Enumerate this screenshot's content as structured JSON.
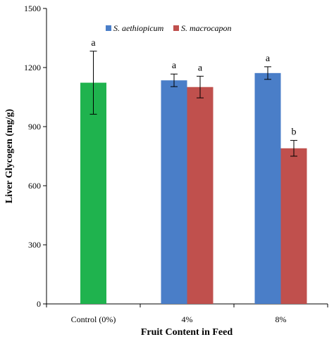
{
  "chart_data": {
    "type": "bar",
    "title": "",
    "xlabel": "Fruit Content in Feed",
    "ylabel": "Liver Glycogen (mg/g)",
    "ylim": [
      0,
      1500
    ],
    "yticks": [
      "0",
      "300",
      "600",
      "900",
      "1200",
      "1500"
    ],
    "categories": [
      "Control (0%)",
      "4%",
      "8%"
    ],
    "legend_position": "top-right",
    "grid": false,
    "bars": [
      {
        "category": "Control (0%)",
        "series": "Control",
        "value": 1123,
        "error": 160,
        "color": "#1fb34e",
        "label": "a"
      },
      {
        "category": "4%",
        "series": "S. aethiopicum",
        "value": 1135,
        "error": 32,
        "color": "#4a7ec8",
        "label": "a"
      },
      {
        "category": "4%",
        "series": "S. macrocapon",
        "value": 1101,
        "error": 55,
        "color": "#c0504d",
        "label": "a"
      },
      {
        "category": "8%",
        "series": "S. aethiopicum",
        "value": 1172,
        "error": 32,
        "color": "#4a7ec8",
        "label": "a"
      },
      {
        "category": "8%",
        "series": "S. macrocapon",
        "value": 790,
        "error": 40,
        "color": "#c0504d",
        "label": "b"
      }
    ],
    "legend": [
      {
        "name": "S. aethiopicum",
        "color": "#4a7ec8"
      },
      {
        "name": "S. macrocapon",
        "color": "#c0504d"
      }
    ]
  }
}
